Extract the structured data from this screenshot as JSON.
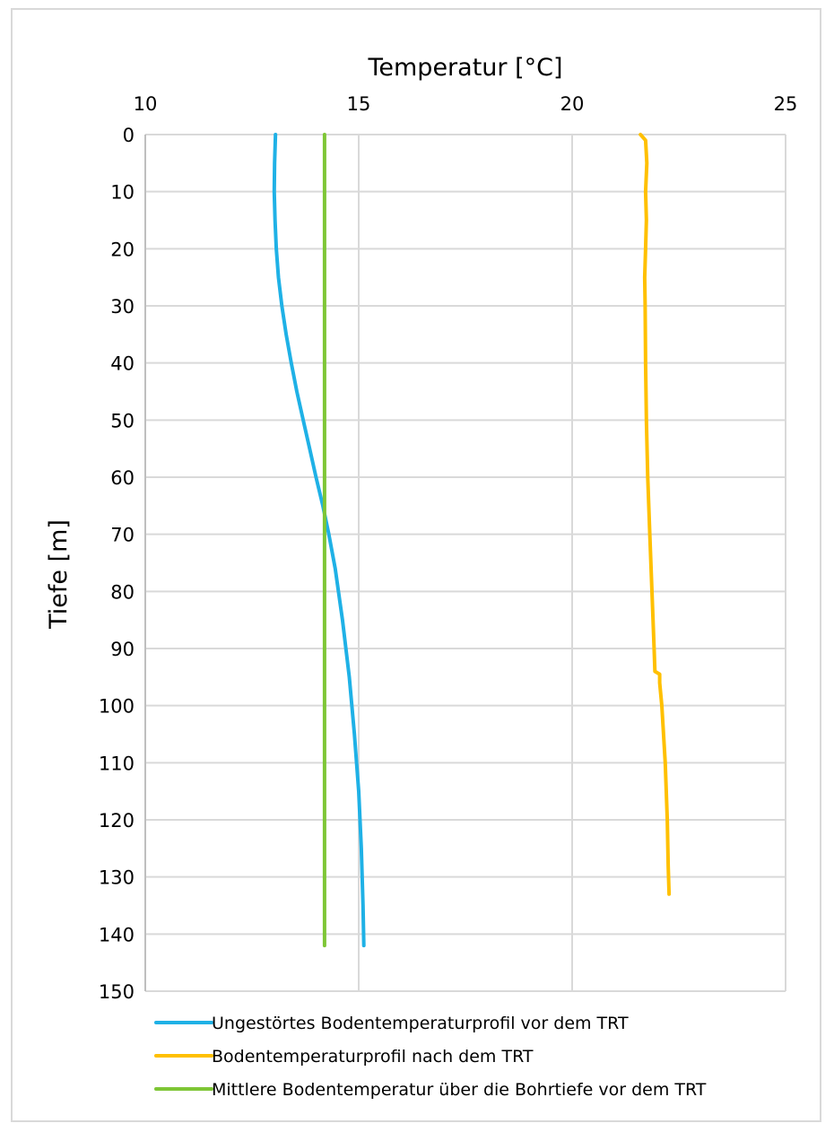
{
  "chart_data": {
    "type": "line",
    "title": "",
    "xlabel": "Temperatur [°C]",
    "ylabel": "Tiefe [m]",
    "xlim": [
      10,
      25
    ],
    "ylim": [
      0,
      150
    ],
    "y_inverted": true,
    "x_axis_position": "top",
    "x_ticks": [
      "10",
      "15",
      "20",
      "25"
    ],
    "y_ticks": [
      "0",
      "10",
      "20",
      "30",
      "40",
      "50",
      "60",
      "70",
      "80",
      "90",
      "100",
      "110",
      "120",
      "130",
      "140",
      "150"
    ],
    "grid": true,
    "legend_position": "bottom",
    "series": [
      {
        "name": "Ungestörtes Bodentemperaturprofil vor dem TRT",
        "color": "#1fb1e6",
        "x": [
          13.05,
          13.03,
          13.02,
          13.04,
          13.07,
          13.12,
          13.2,
          13.3,
          13.42,
          13.55,
          13.7,
          13.85,
          14.0,
          14.16,
          14.3,
          14.45,
          14.62,
          14.78,
          14.9,
          15.0,
          15.06,
          15.1,
          15.12
        ],
        "y": [
          0,
          5,
          10,
          15,
          20,
          25,
          30,
          35,
          40,
          45,
          50,
          55,
          60,
          65,
          70,
          76,
          85,
          95,
          105,
          115,
          125,
          135,
          142
        ]
      },
      {
        "name": "Bodentemperaturprofil nach dem TRT",
        "color": "#ffc000",
        "x": [
          21.6,
          21.72,
          21.75,
          21.72,
          21.74,
          21.72,
          21.7,
          21.71,
          21.72,
          21.74,
          21.77,
          21.82,
          21.87,
          21.92,
          21.94,
          22.05,
          22.05,
          22.1,
          22.18,
          22.23,
          22.25,
          22.27
        ],
        "y": [
          0,
          1,
          5,
          10,
          15,
          20,
          25,
          30,
          40,
          50,
          60,
          70,
          80,
          90,
          94,
          94.5,
          96,
          100,
          110,
          120,
          128,
          133
        ]
      },
      {
        "name": "Mittlere Bodentemperatur über die Bohrtiefe vor dem TRT",
        "color": "#7ec636",
        "x": [
          14.2,
          14.2
        ],
        "y": [
          0,
          142
        ]
      }
    ]
  }
}
